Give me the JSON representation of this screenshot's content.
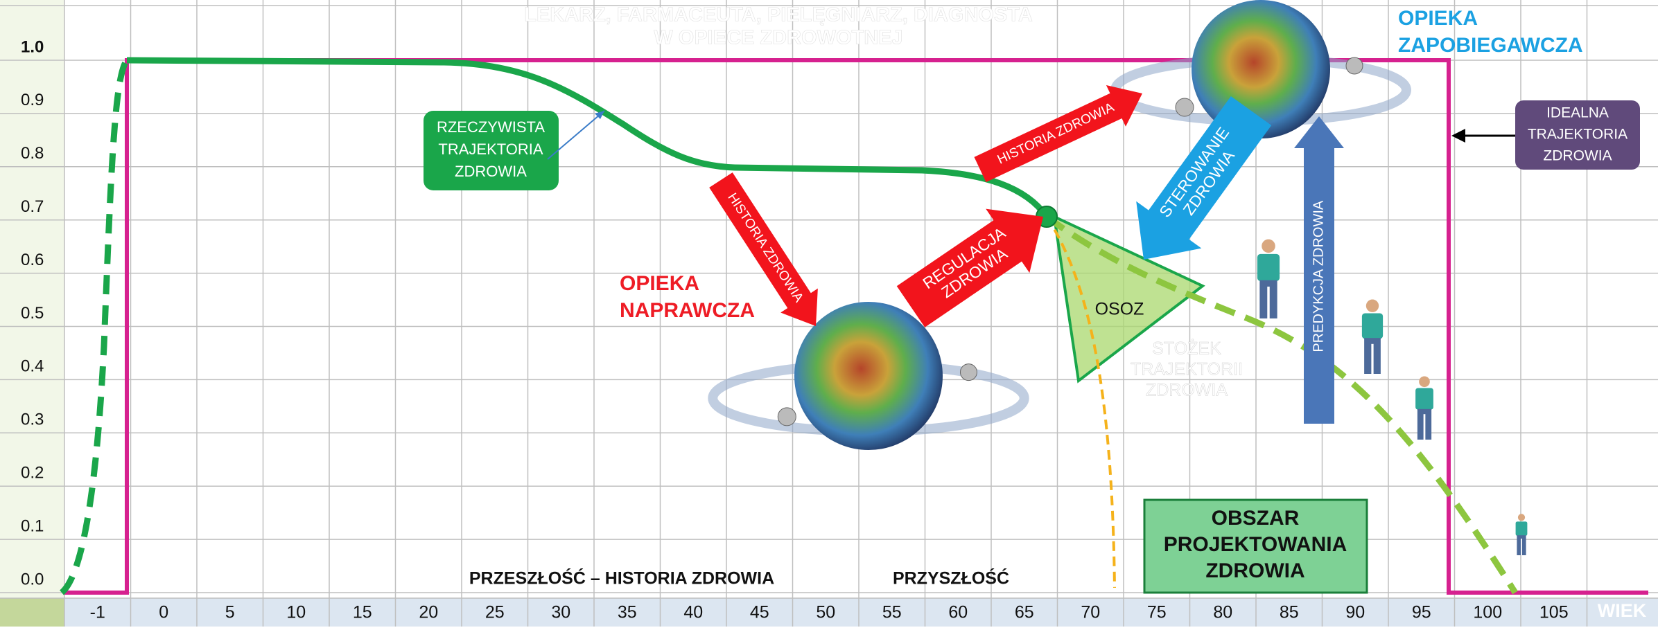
{
  "header": {
    "lines": [
      "LEKARZ, FARMACEUTA, PIELĘGNIARZ, DIAGNOSTA",
      "W OPIECE ZDROWOTNEJ"
    ]
  },
  "y_axis": {
    "labels": [
      "0.0",
      "0.1",
      "0.2",
      "0.3",
      "0.4",
      "0.5",
      "0.6",
      "0.7",
      "0.8",
      "0.9",
      "1.0"
    ]
  },
  "x_axis": {
    "labels": [
      "-1",
      "0",
      "5",
      "10",
      "15",
      "20",
      "25",
      "30",
      "35",
      "40",
      "45",
      "50",
      "55",
      "60",
      "65",
      "70",
      "75",
      "80",
      "85",
      "90",
      "95",
      "100",
      "105"
    ],
    "unit": "WIEK"
  },
  "labels": {
    "opieka_zapobiegawcza": [
      "OPIEKA",
      "ZAPOBIEGAWCZA"
    ],
    "opieka_naprawcza": [
      "OPIEKA",
      "NAPRAWCZA"
    ],
    "rzeczywista": [
      "RZECZYWISTA",
      "TRAJEKTORIA",
      "ZDROWIA"
    ],
    "idealna": [
      "IDEALNA",
      "TRAJEKTORIA",
      "ZDROWIA"
    ],
    "stozek": [
      "STOŻEK",
      "TRAJEKTORII",
      "ZDROWIA"
    ],
    "obszar": [
      "OBSZAR",
      "PROJEKTOWANIA",
      "ZDROWIA"
    ],
    "osoz": "OSOZ",
    "przeszlosc": "PRZESZŁOŚĆ – HISTORIA ZDROWIA",
    "przyszlosc": "PRZYSZŁOŚĆ"
  },
  "arrows": {
    "historia_1": [
      "HISTORIA ZDROWIA"
    ],
    "historia_2": [
      "HISTORIA ZDROWIA"
    ],
    "regulacja": [
      "REGULACJA",
      "ZDROWIA"
    ],
    "sterowanie": [
      "STEROWANIE",
      "ZDROWIA"
    ],
    "predykcja": [
      "PREDYKCJA ZDROWIA"
    ]
  }
}
